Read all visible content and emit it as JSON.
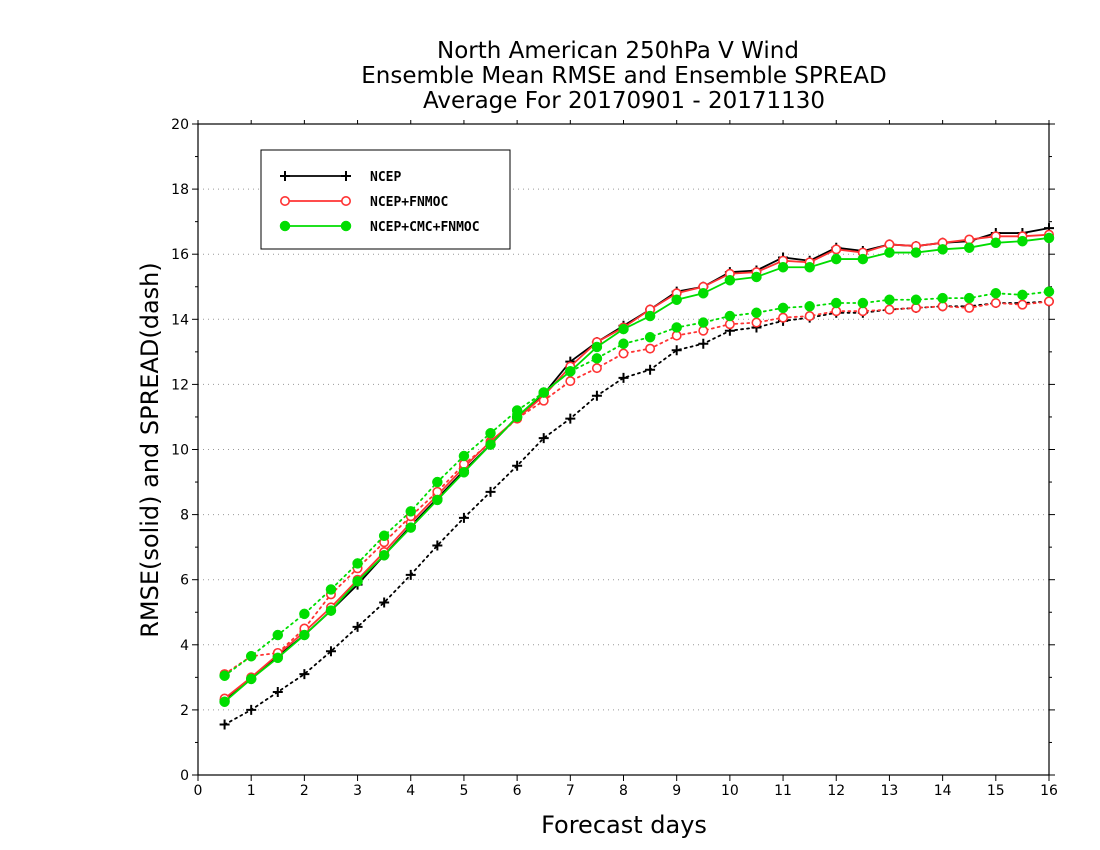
{
  "chart_data": {
    "type": "line",
    "title": [
      "North American 250hPa V Wind",
      "Ensemble Mean RMSE and Ensemble SPREAD",
      "Average For 20170901 - 20171130"
    ],
    "xlabel": "Forecast days",
    "ylabel": "RMSE(solid) and SPREAD(dash)",
    "xlim": [
      0,
      16
    ],
    "ylim": [
      0,
      20
    ],
    "x_ticks": [
      "0",
      "1",
      "2",
      "3",
      "4",
      "5",
      "6",
      "7",
      "8",
      "9",
      "10",
      "11",
      "12",
      "13",
      "14",
      "15",
      "16"
    ],
    "y_ticks": [
      "0",
      "2",
      "4",
      "6",
      "8",
      "10",
      "12",
      "14",
      "16",
      "18",
      "20"
    ],
    "grid": "horizontal-dotted",
    "legend_position": "top-left",
    "x": [
      0.5,
      1,
      1.5,
      2,
      2.5,
      3,
      3.5,
      4,
      4.5,
      5,
      5.5,
      6,
      6.5,
      7,
      7.5,
      8,
      8.5,
      9,
      9.5,
      10,
      10.5,
      11,
      11.5,
      12,
      12.5,
      13,
      13.5,
      14,
      14.5,
      15,
      15.5,
      16
    ],
    "series": [
      {
        "name": "NCEP",
        "color": "#000000",
        "marker": "plus",
        "rmse": [
          2.3,
          2.95,
          3.65,
          4.3,
          5.05,
          5.85,
          6.75,
          7.65,
          8.5,
          9.35,
          10.15,
          11.0,
          11.7,
          12.7,
          13.3,
          13.8,
          14.3,
          14.85,
          15.0,
          15.45,
          15.5,
          15.9,
          15.8,
          16.2,
          16.1,
          16.3,
          16.25,
          16.35,
          16.4,
          16.65,
          16.65,
          16.8
        ],
        "spread": [
          1.55,
          2.0,
          2.55,
          3.1,
          3.8,
          4.55,
          5.3,
          6.15,
          7.05,
          7.9,
          8.7,
          9.5,
          10.35,
          10.95,
          11.65,
          12.2,
          12.45,
          13.05,
          13.25,
          13.65,
          13.75,
          13.95,
          14.05,
          14.2,
          14.2,
          14.3,
          14.35,
          14.4,
          14.4,
          14.5,
          14.5,
          14.55
        ]
      },
      {
        "name": "NCEP+FNMOC",
        "color": "#ff3333",
        "marker": "open-circle",
        "rmse": [
          2.35,
          3.0,
          3.7,
          4.4,
          5.15,
          6.0,
          6.85,
          7.75,
          8.6,
          9.45,
          10.25,
          10.95,
          11.65,
          12.55,
          13.3,
          13.75,
          14.3,
          14.8,
          15.0,
          15.4,
          15.45,
          15.8,
          15.75,
          16.15,
          16.05,
          16.3,
          16.25,
          16.35,
          16.45,
          16.55,
          16.55,
          16.6
        ],
        "spread": [
          3.1,
          3.65,
          3.75,
          4.5,
          5.55,
          6.35,
          7.15,
          7.95,
          8.7,
          9.55,
          10.2,
          10.95,
          11.5,
          12.1,
          12.5,
          12.95,
          13.1,
          13.5,
          13.65,
          13.85,
          13.9,
          14.05,
          14.1,
          14.25,
          14.25,
          14.3,
          14.35,
          14.4,
          14.35,
          14.5,
          14.45,
          14.55
        ]
      },
      {
        "name": "NCEP+CMC+FNMOC",
        "color": "#00dd00",
        "marker": "filled-circle",
        "rmse": [
          2.25,
          2.95,
          3.6,
          4.3,
          5.05,
          5.95,
          6.75,
          7.6,
          8.45,
          9.3,
          10.15,
          11.0,
          11.75,
          12.4,
          13.15,
          13.7,
          14.1,
          14.6,
          14.8,
          15.2,
          15.3,
          15.6,
          15.6,
          15.85,
          15.85,
          16.05,
          16.05,
          16.15,
          16.2,
          16.35,
          16.4,
          16.5
        ],
        "spread": [
          3.05,
          3.65,
          4.3,
          4.95,
          5.7,
          6.5,
          7.35,
          8.1,
          9.0,
          9.8,
          10.5,
          11.2,
          11.75,
          12.4,
          12.8,
          13.25,
          13.45,
          13.75,
          13.9,
          14.1,
          14.2,
          14.35,
          14.4,
          14.5,
          14.5,
          14.6,
          14.6,
          14.65,
          14.65,
          14.8,
          14.75,
          14.85
        ]
      }
    ]
  }
}
